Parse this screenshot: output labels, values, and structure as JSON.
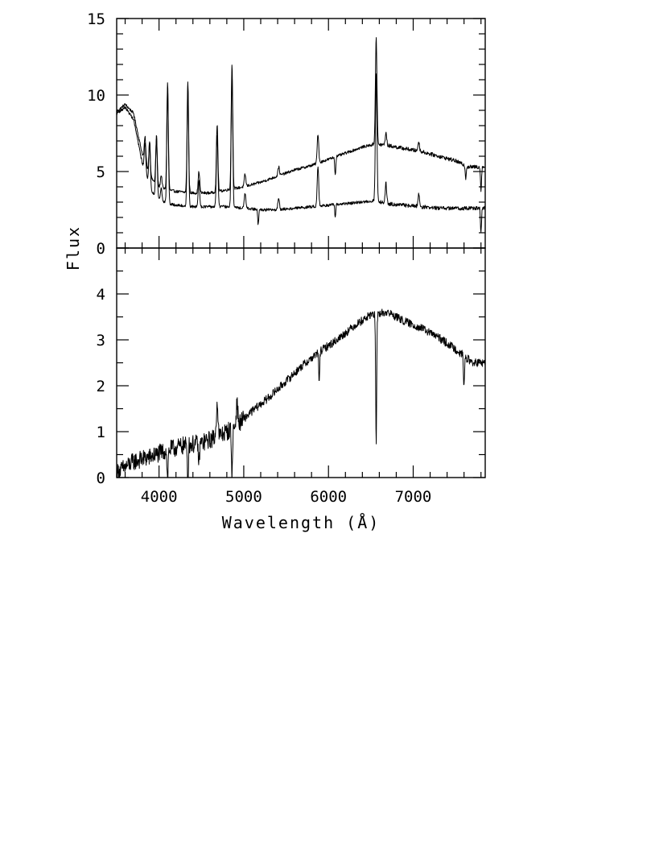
{
  "chart_data": [
    {
      "type": "line",
      "panel": "top",
      "title": "",
      "xlabel": "Wavelength (Å)",
      "ylabel": "Flux",
      "xlim": [
        3500,
        7850
      ],
      "ylim": [
        0,
        15
      ],
      "grid": false,
      "y_ticks": [
        0,
        5,
        10,
        15
      ],
      "y_tick_labels": [
        "0",
        "5",
        "10",
        "15"
      ],
      "series": [
        {
          "continuum": [
            [
              3500,
              8.9
            ],
            [
              3600,
              9.4
            ],
            [
              3700,
              8.8
            ],
            [
              3800,
              6.2
            ],
            [
              3900,
              4.6
            ],
            [
              4000,
              4.0
            ],
            [
              4100,
              3.8
            ],
            [
              4200,
              3.7
            ],
            [
              4400,
              3.6
            ],
            [
              4600,
              3.6
            ],
            [
              4800,
              3.8
            ],
            [
              5000,
              4.0
            ],
            [
              5200,
              4.3
            ],
            [
              5400,
              4.7
            ],
            [
              5600,
              5.1
            ],
            [
              5800,
              5.4
            ],
            [
              6000,
              5.8
            ],
            [
              6200,
              6.2
            ],
            [
              6400,
              6.6
            ],
            [
              6550,
              6.8
            ],
            [
              6700,
              6.7
            ],
            [
              6900,
              6.5
            ],
            [
              7100,
              6.3
            ],
            [
              7300,
              6.0
            ],
            [
              7500,
              5.7
            ],
            [
              7650,
              5.3
            ],
            [
              7850,
              5.3
            ]
          ],
          "lines": [
            [
              3835,
              1.6
            ],
            [
              3889,
              2.2
            ],
            [
              3970,
              3.0
            ],
            [
              4026,
              0.8
            ],
            [
              4101,
              7.0
            ],
            [
              4340,
              7.2
            ],
            [
              4471,
              1.4
            ],
            [
              4686,
              4.4
            ],
            [
              4861,
              8.2
            ],
            [
              5015,
              0.8
            ],
            [
              5412,
              0.6
            ],
            [
              5876,
              1.9
            ],
            [
              6563,
              7.0
            ],
            [
              6678,
              0.8
            ],
            [
              7065,
              0.6
            ]
          ],
          "absorptions": [
            [
              6080,
              -1.2
            ],
            [
              7620,
              -0.8
            ],
            [
              7800,
              -1.5
            ]
          ]
        },
        {
          "continuum": [
            [
              3500,
              8.8
            ],
            [
              3600,
              9.2
            ],
            [
              3700,
              8.4
            ],
            [
              3800,
              5.6
            ],
            [
              3900,
              3.8
            ],
            [
              4000,
              3.2
            ],
            [
              4100,
              2.9
            ],
            [
              4200,
              2.8
            ],
            [
              4400,
              2.7
            ],
            [
              4600,
              2.7
            ],
            [
              4800,
              2.7
            ],
            [
              5000,
              2.6
            ],
            [
              5200,
              2.5
            ],
            [
              5400,
              2.5
            ],
            [
              5600,
              2.6
            ],
            [
              5800,
              2.7
            ],
            [
              6000,
              2.8
            ],
            [
              6200,
              2.9
            ],
            [
              6400,
              3.0
            ],
            [
              6550,
              3.1
            ],
            [
              6700,
              2.9
            ],
            [
              6900,
              2.8
            ],
            [
              7100,
              2.7
            ],
            [
              7300,
              2.6
            ],
            [
              7500,
              2.6
            ],
            [
              7850,
              2.6
            ]
          ],
          "lines": [
            [
              3835,
              2.0
            ],
            [
              3889,
              3.0
            ],
            [
              3970,
              4.0
            ],
            [
              4026,
              0.8
            ],
            [
              4101,
              7.6
            ],
            [
              4340,
              7.8
            ],
            [
              4471,
              1.7
            ],
            [
              4686,
              4.8
            ],
            [
              4861,
              8.8
            ],
            [
              5015,
              1.0
            ],
            [
              5412,
              0.8
            ],
            [
              5876,
              2.6
            ],
            [
              6563,
              8.3
            ],
            [
              6678,
              1.3
            ],
            [
              7065,
              0.8
            ]
          ],
          "absorptions": [
            [
              5170,
              -1.0
            ],
            [
              6080,
              -0.8
            ],
            [
              7800,
              -1.6
            ]
          ]
        }
      ]
    },
    {
      "type": "line",
      "panel": "bottom",
      "title": "",
      "xlabel": "Wavelength (Å)",
      "ylabel": "Flux",
      "xlim": [
        3500,
        7850
      ],
      "ylim": [
        0,
        5
      ],
      "grid": false,
      "x_ticks": [
        4000,
        5000,
        6000,
        7000
      ],
      "x_tick_labels": [
        "4000",
        "5000",
        "6000",
        "7000"
      ],
      "y_ticks": [
        0,
        1,
        2,
        3,
        4
      ],
      "y_tick_labels": [
        "0",
        "1",
        "2",
        "3",
        "4"
      ],
      "series": [
        {
          "continuum": [
            [
              3500,
              0.1
            ],
            [
              3700,
              0.35
            ],
            [
              3900,
              0.45
            ],
            [
              4100,
              0.6
            ],
            [
              4300,
              0.7
            ],
            [
              4500,
              0.75
            ],
            [
              4700,
              0.9
            ],
            [
              4900,
              1.1
            ],
            [
              5100,
              1.45
            ],
            [
              5300,
              1.75
            ],
            [
              5500,
              2.1
            ],
            [
              5700,
              2.45
            ],
            [
              5900,
              2.75
            ],
            [
              6100,
              3.0
            ],
            [
              6300,
              3.3
            ],
            [
              6500,
              3.55
            ],
            [
              6700,
              3.6
            ],
            [
              6900,
              3.4
            ],
            [
              7100,
              3.25
            ],
            [
              7300,
              3.05
            ],
            [
              7500,
              2.8
            ],
            [
              7700,
              2.5
            ],
            [
              7850,
              2.5
            ]
          ],
          "lines": [
            [
              4686,
              0.8
            ],
            [
              4920,
              0.5
            ]
          ],
          "absorptions": [
            [
              4101,
              -0.7
            ],
            [
              4340,
              -0.7
            ],
            [
              4471,
              -0.5
            ],
            [
              4861,
              -1.1
            ],
            [
              5890,
              -0.6
            ],
            [
              6563,
              -2.9
            ],
            [
              7600,
              -0.7
            ]
          ]
        }
      ]
    }
  ]
}
